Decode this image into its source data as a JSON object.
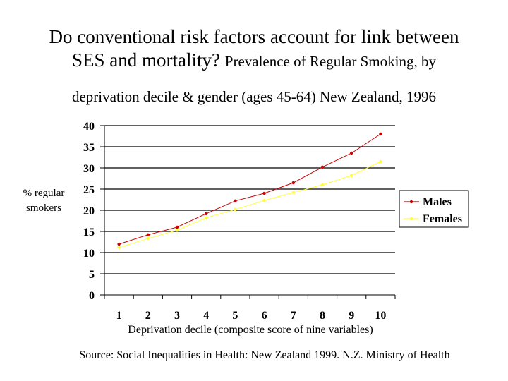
{
  "slide": {
    "title_main": "Do conventional risk factors account for link between",
    "title_line2": "SES and mortality?",
    "title_line2_sub": "Prevalence of Regular Smoking, by",
    "title_line3": "deprivation decile & gender (ages 45-64)  New Zealand, 1996",
    "source": "Source: Social Inequalities in Health: New Zealand 1999.  N.Z. Ministry of Health"
  },
  "chart_data": {
    "type": "line",
    "title": "",
    "xlabel": "Deprivation decile (composite score of nine variables)",
    "ylabel": "% regular smokers",
    "categories": [
      "1",
      "2",
      "3",
      "4",
      "5",
      "6",
      "7",
      "8",
      "9",
      "10"
    ],
    "ylim": [
      0,
      40
    ],
    "yticks": [
      "0",
      "5",
      "10",
      "15",
      "20",
      "25",
      "30",
      "35",
      "40"
    ],
    "grid": true,
    "legend_position": "right",
    "series": [
      {
        "name": "Males",
        "color": "#cc0000",
        "values": [
          12,
          14.2,
          16,
          19.2,
          22.2,
          24,
          26.5,
          30.2,
          33.5,
          38
        ]
      },
      {
        "name": "Females",
        "color": "#ffff33",
        "values": [
          11.2,
          13.3,
          15.3,
          18.2,
          20.2,
          22.3,
          24.2,
          26,
          28.2,
          31.5
        ]
      }
    ]
  }
}
